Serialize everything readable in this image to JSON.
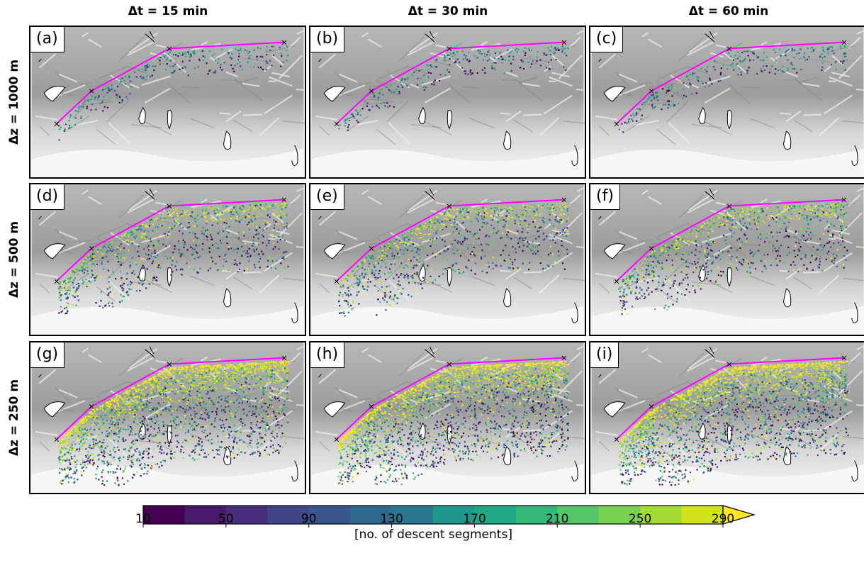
{
  "columns": [
    "Δt = 15 min",
    "Δt = 30 min",
    "Δt = 60 min"
  ],
  "rows": [
    "Δz = 1000 m",
    "Δz = 500 m",
    "Δz = 250 m"
  ],
  "panels": [
    {
      "label": "(a)",
      "column": "Δt = 15 min",
      "row": "Δz = 1000 m"
    },
    {
      "label": "(b)",
      "column": "Δt = 30 min",
      "row": "Δz = 1000 m"
    },
    {
      "label": "(c)",
      "column": "Δt = 60 min",
      "row": "Δz = 1000 m"
    },
    {
      "label": "(d)",
      "column": "Δt = 15 min",
      "row": "Δz = 500 m"
    },
    {
      "label": "(e)",
      "column": "Δt = 30 min",
      "row": "Δz = 500 m"
    },
    {
      "label": "(f)",
      "column": "Δt = 60 min",
      "row": "Δz = 500 m"
    },
    {
      "label": "(g)",
      "column": "Δt = 15 min",
      "row": "Δz = 250 m"
    },
    {
      "label": "(h)",
      "column": "Δt = 30 min",
      "row": "Δz = 250 m"
    },
    {
      "label": "(i)",
      "column": "Δt = 60 min",
      "row": "Δz = 250 m"
    }
  ],
  "colors": {
    "section_line": "#ff00ff",
    "section_marker": "#000000",
    "terrain_dark": "#8a8a8a",
    "terrain_light": "#f4f4f4"
  },
  "chart_data": {
    "type": "heatmap",
    "colorbar": {
      "label": "[no. of descent segments]",
      "ticks": [
        10,
        50,
        90,
        130,
        170,
        210,
        250,
        290
      ],
      "range": [
        10,
        290
      ],
      "step": 20,
      "extend": "max",
      "colormap": "viridis",
      "level_colors": [
        "#440154",
        "#481a6c",
        "#472f7d",
        "#414487",
        "#39568c",
        "#31688e",
        "#2a788e",
        "#23888e",
        "#1f988b",
        "#22a884",
        "#35b779",
        "#54c568",
        "#7ad151",
        "#a5db36",
        "#d2e21b",
        "#fde725"
      ]
    },
    "section_markers": 4
  }
}
